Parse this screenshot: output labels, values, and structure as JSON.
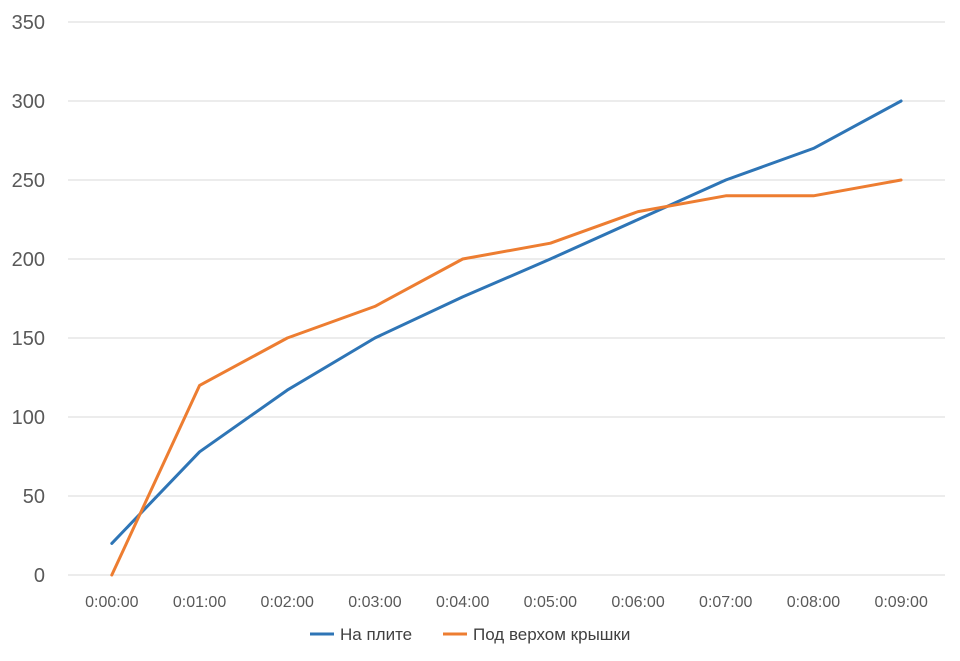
{
  "chart_data": {
    "type": "line",
    "title": "",
    "xlabel": "",
    "ylabel": "",
    "ylim": [
      0,
      350
    ],
    "y_ticks": [
      "0",
      "50",
      "100",
      "150",
      "200",
      "250",
      "300",
      "350"
    ],
    "categories": [
      "0:00:00",
      "0:01:00",
      "0:02:00",
      "0:03:00",
      "0:04:00",
      "0:05:00",
      "0:06:00",
      "0:07:00",
      "0:08:00",
      "0:09:00"
    ],
    "grid": true,
    "legend_position": "bottom",
    "series": [
      {
        "name": "На плите",
        "color": "#2e75b6",
        "values": [
          20,
          78,
          117,
          150,
          176,
          200,
          225,
          250,
          270,
          300
        ]
      },
      {
        "name": "Под верхом крышки",
        "color": "#ed7d31",
        "values": [
          0,
          120,
          150,
          170,
          200,
          210,
          230,
          240,
          240,
          250
        ]
      }
    ]
  }
}
